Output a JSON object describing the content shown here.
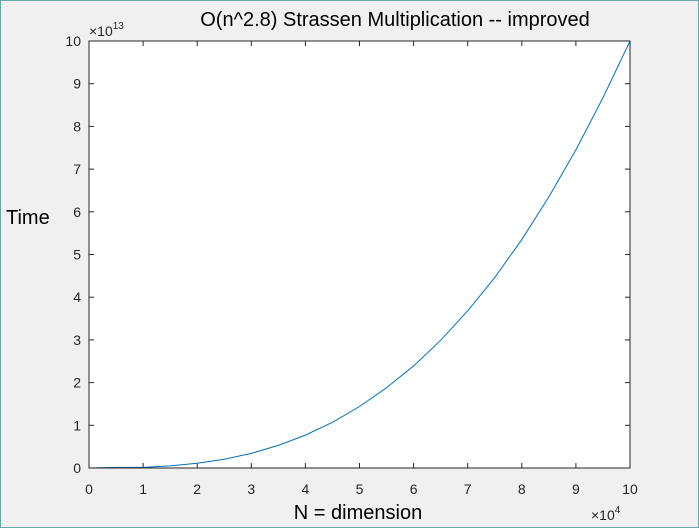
{
  "chart_data": {
    "type": "line",
    "title": "O(n^2.8) Strassen Multiplication -- improved",
    "xlabel": "N = dimension",
    "ylabel": "Time",
    "x_exponent_label": {
      "base": "×10",
      "power": "4"
    },
    "y_exponent_label": {
      "base": "×10",
      "power": "13"
    },
    "xlim": [
      0,
      10
    ],
    "ylim": [
      0,
      10
    ],
    "x_ticks": [
      "0",
      "1",
      "2",
      "3",
      "4",
      "5",
      "6",
      "7",
      "8",
      "9",
      "10"
    ],
    "y_ticks": [
      "0",
      "1",
      "2",
      "3",
      "4",
      "5",
      "6",
      "7",
      "8",
      "9",
      "10"
    ],
    "grid": false,
    "legend": "none",
    "colors": {
      "line": "#0072bd",
      "axes": "#262626",
      "background": "#ffffff",
      "figure": "#f0f0f0"
    },
    "series": [
      {
        "x": [
          0,
          0.5,
          1,
          1.5,
          2,
          2.5,
          3,
          3.5,
          4,
          4.5,
          5,
          5.5,
          6,
          6.5,
          7,
          7.5,
          8,
          8.5,
          9,
          9.5,
          10
        ],
        "y": [
          0,
          0.0144,
          0.0158,
          0.049,
          0.11,
          0.205,
          0.343,
          0.53,
          0.77,
          1.07,
          1.44,
          1.88,
          2.39,
          2.99,
          3.68,
          4.46,
          5.35,
          6.35,
          7.45,
          8.67,
          10.0
        ]
      }
    ]
  }
}
